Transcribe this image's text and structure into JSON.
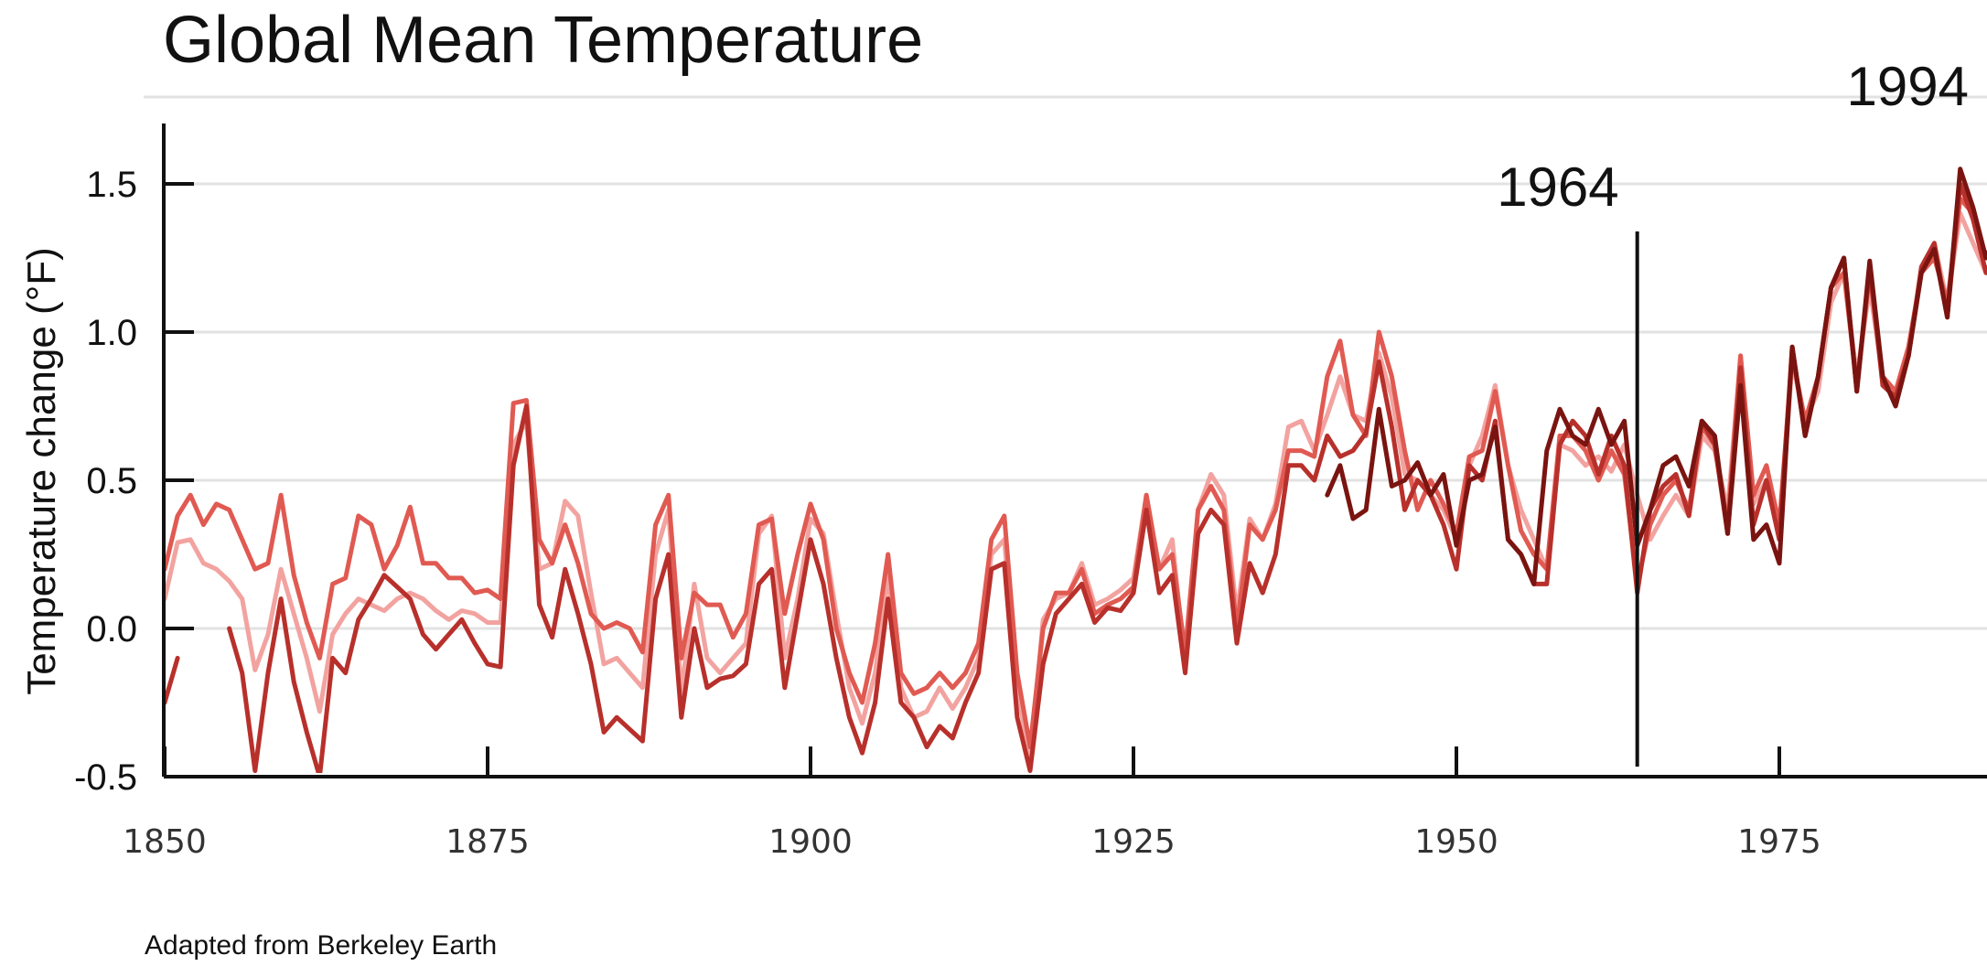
{
  "chart_data": {
    "type": "line",
    "title": "Global Mean Temperature",
    "ylabel": "Temperature change (°F)",
    "xlabel": "",
    "source": "Adapted from Berkeley Earth",
    "xlim": [
      1850,
      1992
    ],
    "ylim": [
      -0.5,
      1.7
    ],
    "y_ticks": [
      {
        "value": 1.5,
        "label": "1.5"
      },
      {
        "value": 1.0,
        "label": "1.0"
      },
      {
        "value": 0.5,
        "label": "0.5"
      },
      {
        "value": 0.0,
        "label": "0.0"
      },
      {
        "value": -0.5,
        "label": "-0.5"
      }
    ],
    "x_ticks": [
      {
        "value": 1850,
        "label": "1850"
      },
      {
        "value": 1875,
        "label": "1875"
      },
      {
        "value": 1900,
        "label": "1900"
      },
      {
        "value": 1925,
        "label": "1925"
      },
      {
        "value": 1950,
        "label": "1950"
      },
      {
        "value": 1975,
        "label": "1975"
      }
    ],
    "markers": [
      {
        "year": 1964,
        "label": "1964"
      },
      {
        "year": 1994,
        "label": "1994"
      }
    ],
    "series": [
      {
        "color": "#f2a3a0",
        "x": [
          1850,
          1851,
          1852,
          1853,
          1854,
          1855,
          1856,
          1857,
          1858,
          1859,
          1860,
          1861,
          1862,
          1863,
          1864,
          1865,
          1866,
          1867,
          1868,
          1869,
          1870,
          1871,
          1872,
          1873,
          1874,
          1875,
          1876,
          1877,
          1878,
          1879,
          1880,
          1881,
          1882,
          1883,
          1884,
          1885,
          1886,
          1887,
          1888,
          1889,
          1890,
          1891,
          1892,
          1893,
          1894,
          1895,
          1896,
          1897,
          1898,
          1899,
          1900,
          1901,
          1902,
          1903,
          1904,
          1905,
          1906,
          1907,
          1908,
          1909,
          1910,
          1911,
          1912,
          1913,
          1914,
          1915,
          1916,
          1917,
          1918,
          1919,
          1920,
          1921,
          1922,
          1923,
          1924,
          1925,
          1926,
          1927,
          1928,
          1929,
          1930,
          1931,
          1932,
          1933,
          1934,
          1935,
          1936,
          1937,
          1938,
          1939,
          1940,
          1941,
          1942,
          1943,
          1944,
          1945,
          1946,
          1947,
          1948,
          1949,
          1950,
          1951,
          1952,
          1953,
          1954,
          1955,
          1956,
          1957,
          1958,
          1959,
          1960,
          1961,
          1962,
          1963,
          1964,
          1965,
          1966,
          1967,
          1968,
          1969,
          1970,
          1971,
          1972,
          1973,
          1974,
          1975,
          1976,
          1977,
          1978,
          1979,
          1980,
          1981,
          1982,
          1983,
          1984,
          1985,
          1986,
          1987,
          1988,
          1989,
          1990,
          1991,
          1992
        ],
        "values": [
          0.1,
          0.29,
          0.3,
          0.22,
          0.2,
          0.16,
          0.1,
          -0.14,
          -0.02,
          0.2,
          0.05,
          -0.1,
          -0.28,
          -0.02,
          0.05,
          0.1,
          0.08,
          0.06,
          0.1,
          0.12,
          0.1,
          0.06,
          0.03,
          0.06,
          0.05,
          0.02,
          0.02,
          0.62,
          0.7,
          0.2,
          0.22,
          0.43,
          0.38,
          0.12,
          -0.12,
          -0.1,
          -0.15,
          -0.2,
          0.25,
          0.4,
          -0.22,
          0.15,
          -0.1,
          -0.15,
          -0.1,
          -0.05,
          0.32,
          0.38,
          -0.1,
          0.1,
          0.37,
          0.32,
          0.05,
          -0.2,
          -0.32,
          -0.15,
          0.18,
          -0.2,
          -0.3,
          -0.28,
          -0.2,
          -0.27,
          -0.2,
          -0.1,
          0.25,
          0.3,
          -0.2,
          -0.45,
          0.03,
          0.1,
          0.12,
          0.22,
          0.08,
          0.1,
          0.13,
          0.17,
          0.45,
          0.2,
          0.3,
          -0.12,
          0.4,
          0.52,
          0.45,
          0.05,
          0.37,
          0.3,
          0.42,
          0.68,
          0.7,
          0.6,
          0.72,
          0.85,
          0.72,
          0.7,
          0.93,
          0.78,
          0.52,
          0.5,
          0.45,
          0.4,
          0.3,
          0.55,
          0.65,
          0.82,
          0.55,
          0.4,
          0.3,
          0.2,
          0.62,
          0.6,
          0.55,
          0.58,
          0.53,
          0.62,
          0.45,
          0.3,
          0.38,
          0.45,
          0.38,
          0.65,
          0.6,
          0.4,
          0.92,
          0.42,
          0.5,
          0.3,
          0.9,
          0.7,
          0.8,
          1.1,
          1.2,
          0.85,
          1.15,
          0.85,
          0.8,
          0.92,
          1.2,
          1.3,
          1.1,
          1.4,
          1.3,
          1.2,
          1.3
        ]
      },
      {
        "color": "#e05a52",
        "x": [
          1850,
          1851,
          1852,
          1853,
          1854,
          1855,
          1856,
          1857,
          1858,
          1859,
          1860,
          1861,
          1862,
          1863,
          1864,
          1865,
          1866,
          1867,
          1868,
          1869,
          1870,
          1871,
          1872,
          1873,
          1874,
          1875,
          1876,
          1877,
          1878,
          1879,
          1880,
          1881,
          1882,
          1883,
          1884,
          1885,
          1886,
          1887,
          1888,
          1889,
          1890,
          1891,
          1892,
          1893,
          1894,
          1895,
          1896,
          1897,
          1898,
          1899,
          1900,
          1901,
          1902,
          1903,
          1904,
          1905,
          1906,
          1907,
          1908,
          1909,
          1910,
          1911,
          1912,
          1913,
          1914,
          1915,
          1916,
          1917,
          1918,
          1919,
          1920,
          1921,
          1922,
          1923,
          1924,
          1925,
          1926,
          1927,
          1928,
          1929,
          1930,
          1931,
          1932,
          1933,
          1934,
          1935,
          1936,
          1937,
          1938,
          1939,
          1940,
          1941,
          1942,
          1943,
          1944,
          1945,
          1946,
          1947,
          1948,
          1949,
          1950,
          1951,
          1952,
          1953,
          1954,
          1955,
          1956,
          1957,
          1958,
          1959,
          1960,
          1961,
          1962,
          1963,
          1964,
          1965,
          1966,
          1967,
          1968,
          1969,
          1970,
          1971,
          1972,
          1973,
          1974,
          1975,
          1976,
          1977,
          1978,
          1979,
          1980,
          1981,
          1982,
          1983,
          1984,
          1985,
          1986,
          1987,
          1988,
          1989,
          1990,
          1991,
          1992
        ],
        "values": [
          0.2,
          0.38,
          0.45,
          0.35,
          0.42,
          0.4,
          0.3,
          0.2,
          0.22,
          0.45,
          0.18,
          0.02,
          -0.1,
          0.15,
          0.17,
          0.38,
          0.35,
          0.2,
          0.28,
          0.41,
          0.22,
          0.22,
          0.17,
          0.17,
          0.12,
          0.13,
          0.1,
          0.76,
          0.77,
          0.3,
          0.22,
          0.35,
          0.22,
          0.05,
          0.0,
          0.02,
          0.0,
          -0.08,
          0.35,
          0.45,
          -0.1,
          0.12,
          0.08,
          0.08,
          -0.03,
          0.05,
          0.35,
          0.37,
          0.05,
          0.25,
          0.42,
          0.3,
          0.0,
          -0.15,
          -0.25,
          -0.05,
          0.25,
          -0.15,
          -0.22,
          -0.2,
          -0.15,
          -0.2,
          -0.15,
          -0.05,
          0.3,
          0.38,
          -0.15,
          -0.4,
          0.0,
          0.12,
          0.12,
          0.2,
          0.05,
          0.08,
          0.1,
          0.14,
          0.45,
          0.2,
          0.25,
          -0.08,
          0.4,
          0.48,
          0.4,
          0.0,
          0.35,
          0.3,
          0.4,
          0.6,
          0.6,
          0.58,
          0.85,
          0.97,
          0.72,
          0.65,
          1.0,
          0.85,
          0.6,
          0.4,
          0.5,
          0.42,
          0.32,
          0.58,
          0.6,
          0.8,
          0.55,
          0.33,
          0.25,
          0.2,
          0.65,
          0.65,
          0.6,
          0.5,
          0.6,
          0.52,
          0.15,
          0.35,
          0.45,
          0.5,
          0.4,
          0.68,
          0.62,
          0.35,
          0.92,
          0.45,
          0.55,
          0.35,
          0.92,
          0.7,
          0.85,
          1.15,
          1.2,
          0.82,
          1.2,
          0.85,
          0.8,
          0.95,
          1.2,
          1.25,
          1.1,
          1.45,
          1.4,
          1.25,
          1.35
        ]
      },
      {
        "color": "#b8302b",
        "x": [
          1850,
          1851,
          1852,
          1853,
          1854,
          1855,
          1856,
          1857,
          1858,
          1859,
          1860,
          1861,
          1862,
          1863,
          1864,
          1865,
          1866,
          1867,
          1868,
          1869,
          1870,
          1871,
          1872,
          1873,
          1874,
          1875,
          1876,
          1877,
          1878,
          1879,
          1880,
          1881,
          1882,
          1883,
          1884,
          1885,
          1886,
          1887,
          1888,
          1889,
          1890,
          1891,
          1892,
          1893,
          1894,
          1895,
          1896,
          1897,
          1898,
          1899,
          1900,
          1901,
          1902,
          1903,
          1904,
          1905,
          1906,
          1907,
          1908,
          1909,
          1910,
          1911,
          1912,
          1913,
          1914,
          1915,
          1916,
          1917,
          1918,
          1919,
          1920,
          1921,
          1922,
          1923,
          1924,
          1925,
          1926,
          1927,
          1928,
          1929,
          1930,
          1931,
          1932,
          1933,
          1934,
          1935,
          1936,
          1937,
          1938,
          1939,
          1940,
          1941,
          1942,
          1943,
          1944,
          1945,
          1946,
          1947,
          1948,
          1949,
          1950,
          1951,
          1952,
          1953,
          1954,
          1955,
          1956,
          1957,
          1958,
          1959,
          1960,
          1961,
          1962,
          1963,
          1964,
          1965,
          1966,
          1967,
          1968,
          1969,
          1970,
          1971,
          1972,
          1973,
          1974,
          1975,
          1976,
          1977,
          1978,
          1979,
          1980,
          1981,
          1982,
          1983,
          1984,
          1985,
          1986,
          1987,
          1988,
          1989,
          1990,
          1991,
          1992
        ],
        "values": [
          -0.25,
          -0.1,
          null,
          null,
          null,
          0.0,
          -0.15,
          -0.48,
          -0.15,
          0.1,
          -0.18,
          -0.35,
          -0.5,
          -0.1,
          -0.15,
          0.03,
          0.1,
          0.18,
          0.14,
          0.1,
          -0.02,
          -0.07,
          -0.02,
          0.03,
          -0.05,
          -0.12,
          -0.13,
          0.55,
          0.75,
          0.08,
          -0.03,
          0.2,
          0.05,
          -0.12,
          -0.35,
          -0.3,
          -0.34,
          -0.38,
          0.1,
          0.25,
          -0.3,
          0.0,
          -0.2,
          -0.17,
          -0.16,
          -0.12,
          0.15,
          0.2,
          -0.2,
          0.05,
          0.3,
          0.15,
          -0.1,
          -0.3,
          -0.42,
          -0.25,
          0.1,
          -0.25,
          -0.3,
          -0.4,
          -0.33,
          -0.37,
          -0.25,
          -0.15,
          0.2,
          0.22,
          -0.3,
          -0.48,
          -0.12,
          0.05,
          0.1,
          0.15,
          0.02,
          0.07,
          0.06,
          0.12,
          0.4,
          0.12,
          0.18,
          -0.15,
          0.32,
          0.4,
          0.35,
          -0.05,
          0.22,
          0.12,
          0.25,
          0.55,
          0.55,
          0.5,
          0.65,
          0.58,
          0.6,
          0.66,
          0.9,
          0.68,
          0.4,
          0.5,
          0.45,
          0.35,
          0.2,
          0.55,
          0.5,
          0.7,
          0.3,
          0.25,
          0.15,
          0.15,
          0.62,
          0.7,
          0.65,
          0.52,
          0.65,
          0.55,
          0.12,
          0.4,
          0.48,
          0.52,
          0.38,
          0.7,
          0.62,
          0.32,
          0.88,
          0.35,
          0.5,
          0.3,
          0.95,
          0.65,
          0.85,
          1.15,
          1.25,
          0.8,
          1.22,
          0.82,
          0.78,
          0.92,
          1.22,
          1.3,
          1.05,
          1.5,
          1.38,
          1.2,
          1.3
        ]
      },
      {
        "color": "#7a1410",
        "x": [
          1940,
          1941,
          1942,
          1943,
          1944,
          1945,
          1946,
          1947,
          1948,
          1949,
          1950,
          1951,
          1952,
          1953,
          1954,
          1955,
          1956,
          1957,
          1958,
          1959,
          1960,
          1961,
          1962,
          1963,
          1964,
          1965,
          1966,
          1967,
          1968,
          1969,
          1970,
          1971,
          1972,
          1973,
          1974,
          1975,
          1976,
          1977,
          1978,
          1979,
          1980,
          1981,
          1982,
          1983,
          1984,
          1985,
          1986,
          1987,
          1988,
          1989,
          1990,
          1991,
          1992
        ],
        "values": [
          0.45,
          0.55,
          0.37,
          0.4,
          0.74,
          0.48,
          0.5,
          0.56,
          0.45,
          0.52,
          0.28,
          0.5,
          0.52,
          0.68,
          0.3,
          0.25,
          0.15,
          0.6,
          0.74,
          0.65,
          0.62,
          0.74,
          0.62,
          0.7,
          0.28,
          0.4,
          0.55,
          0.58,
          0.48,
          0.7,
          0.65,
          0.32,
          0.82,
          0.3,
          0.35,
          0.22,
          0.95,
          0.65,
          0.85,
          1.15,
          1.25,
          0.8,
          1.24,
          0.85,
          0.75,
          0.92,
          1.2,
          1.28,
          1.05,
          1.55,
          1.42,
          1.25,
          1.35
        ]
      }
    ]
  }
}
